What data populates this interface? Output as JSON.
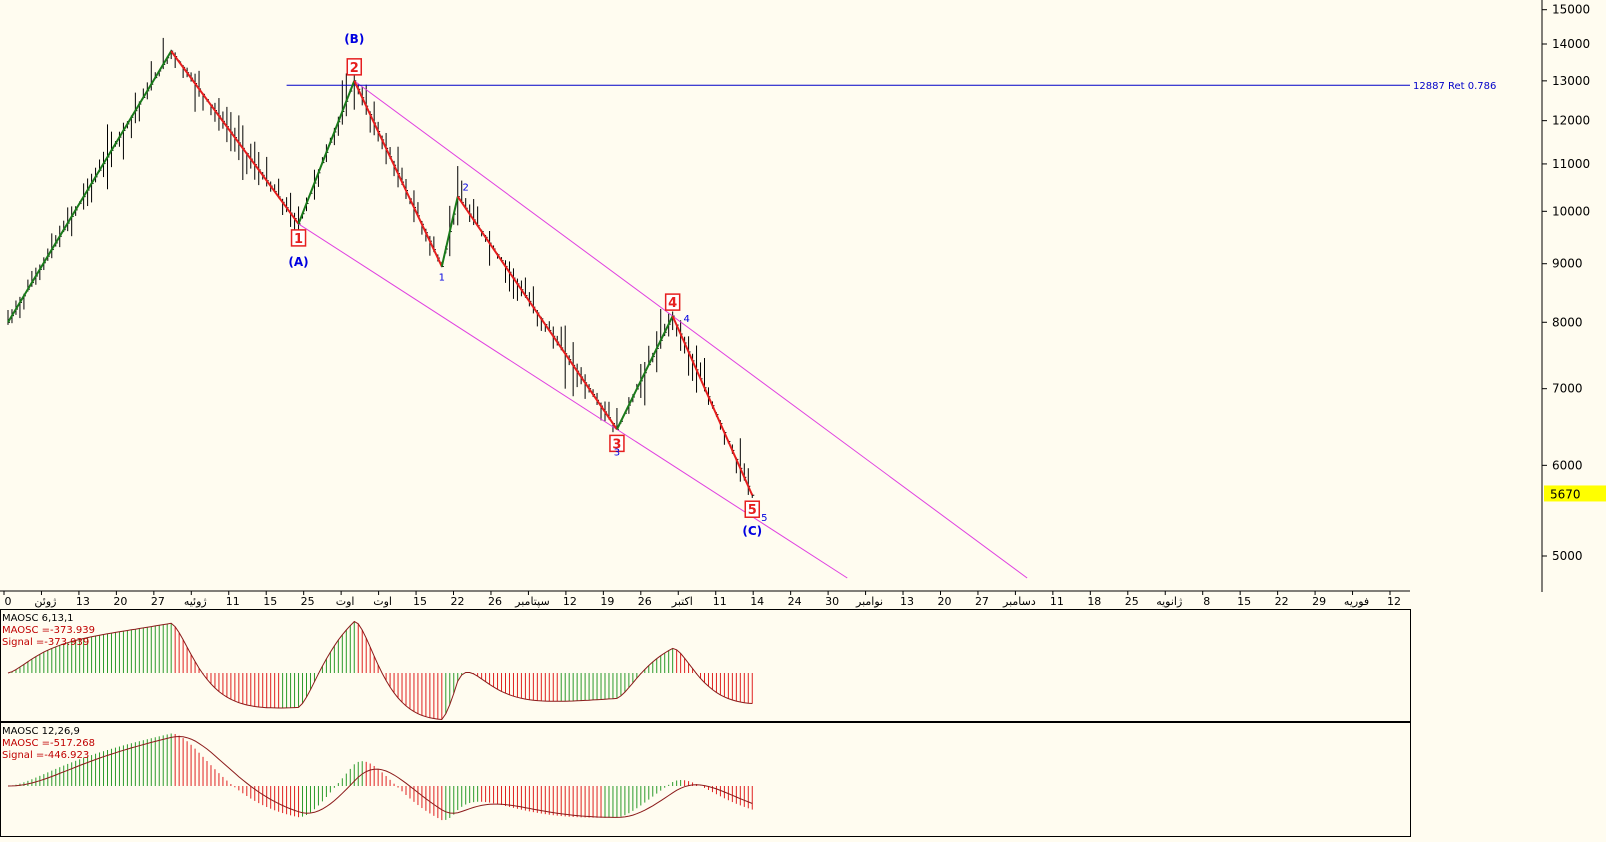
{
  "chart_data": {
    "type": "bar",
    "price_scale": "log",
    "ylim": [
      4600,
      15400
    ],
    "y_ticks": [
      "15000",
      "14000",
      "13000",
      "12000",
      "11000",
      "10000",
      "9000",
      "8000",
      "7000",
      "6000",
      "5000"
    ],
    "last_price": "5670",
    "x_ticks": [
      "0",
      "ژوئن",
      "13",
      "20",
      "27",
      "ژوئیه",
      "11",
      "15",
      "25",
      "اوت",
      "اوت",
      "15",
      "22",
      "26",
      "سپتامبر",
      "12",
      "19",
      "26",
      "اکتبر",
      "11",
      "14",
      "24",
      "30",
      "نوامبر",
      "13",
      "20",
      "27",
      "دسامبر",
      "11",
      "18",
      "25",
      "ژانویه",
      "8",
      "15",
      "22",
      "29",
      "فوریه",
      "12"
    ],
    "retracement_line": {
      "price": 12887,
      "label": "12887 Ret 0.786"
    },
    "wave_points": [
      {
        "bar": 0,
        "price": 8000
      },
      {
        "bar": 41,
        "price": 13800
      },
      {
        "bar": 73,
        "price": 9750
      },
      {
        "bar": 87,
        "price": 13000
      },
      {
        "bar": 109,
        "price": 8950
      },
      {
        "bar": 113,
        "price": 10300
      },
      {
        "bar": 153,
        "price": 6450
      },
      {
        "bar": 167,
        "price": 8100
      },
      {
        "bar": 187,
        "price": 5650
      }
    ],
    "wave_labels_major": [
      "1",
      "2",
      "3",
      "4",
      "5"
    ],
    "wave_labels_minor": [
      "1",
      "2",
      "3",
      "4",
      "5"
    ],
    "abc_labels": [
      "(A)",
      "(B)",
      "(C)"
    ],
    "indicators": [
      {
        "lines": [
          "MAOSC 6,13,1",
          "MAOSC =-373.939",
          "Signal =-373.939"
        ],
        "last_value": -373.939,
        "histogram_max": 600
      },
      {
        "lines": [
          "MAOSC 12,26,9",
          "MAOSC =-517.268",
          "Signal =-446.923"
        ],
        "last_value": -517.268,
        "last_signal": -446.923,
        "histogram_max": 1300
      }
    ],
    "colors": {
      "background": "#fffcf0",
      "up_wave": "#1a7a1a",
      "down_wave": "#e61e1e",
      "channel": "#e040e0",
      "retracement": "#0000c8",
      "label_blue": "#0000e0",
      "label_red": "#e61e1e",
      "price_highlight": "#ffff00",
      "signal_line": "#8b1a1a"
    }
  }
}
